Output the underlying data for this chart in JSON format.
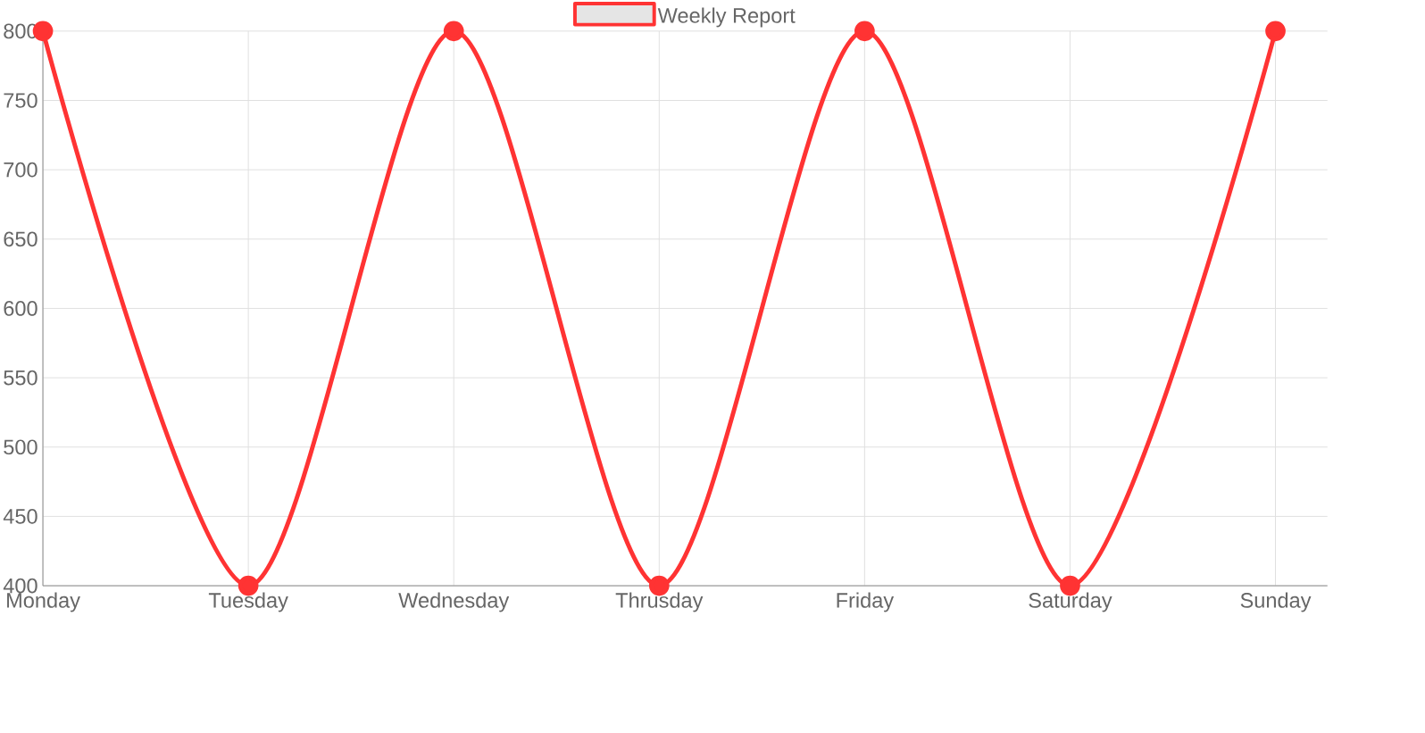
{
  "chart_data": {
    "type": "line",
    "categories": [
      "Monday",
      "Tuesday",
      "Wednesday",
      "Thrusday",
      "Friday",
      "Saturday",
      "Sunday"
    ],
    "series": [
      {
        "name": "Weekly Report",
        "color": "#ff3333",
        "values": [
          800,
          400,
          800,
          400,
          800,
          400,
          800
        ]
      }
    ],
    "ylim": [
      400,
      800
    ],
    "yticks": [
      400,
      450,
      500,
      550,
      600,
      650,
      700,
      750,
      800
    ],
    "grid": true,
    "legend": "top",
    "marker": "circle",
    "line_style": "solid"
  }
}
